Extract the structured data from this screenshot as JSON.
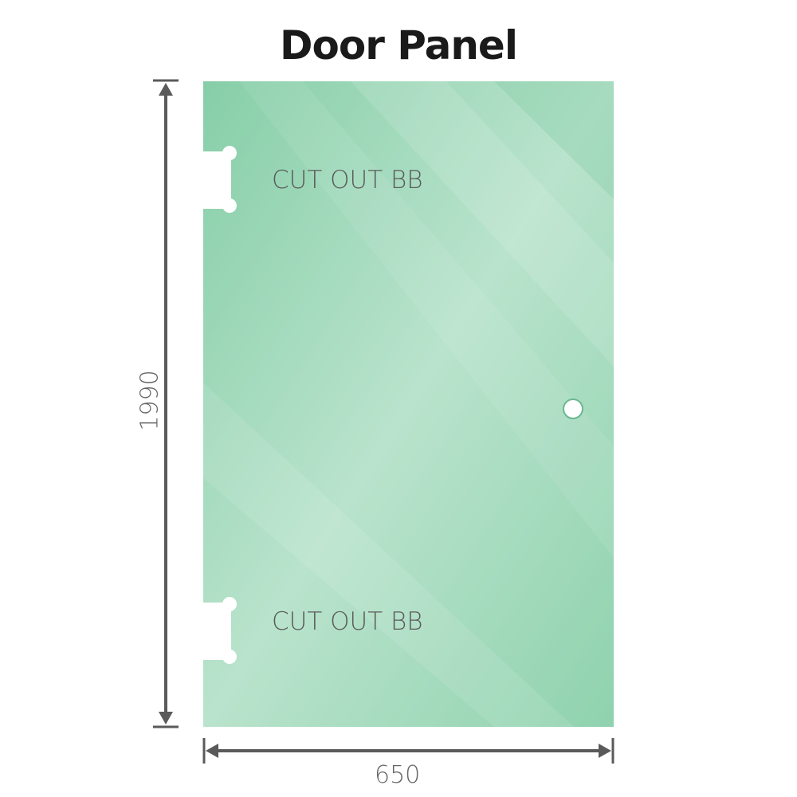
{
  "title": "Door Panel",
  "panel": {
    "color": "#8bd0ac",
    "cutout_label_top": "CUT OUT BB",
    "cutout_label_bottom": "CUT OUT BB"
  },
  "dimensions": {
    "width": "650",
    "height": "1990",
    "line_color": "#5a5a5a"
  }
}
